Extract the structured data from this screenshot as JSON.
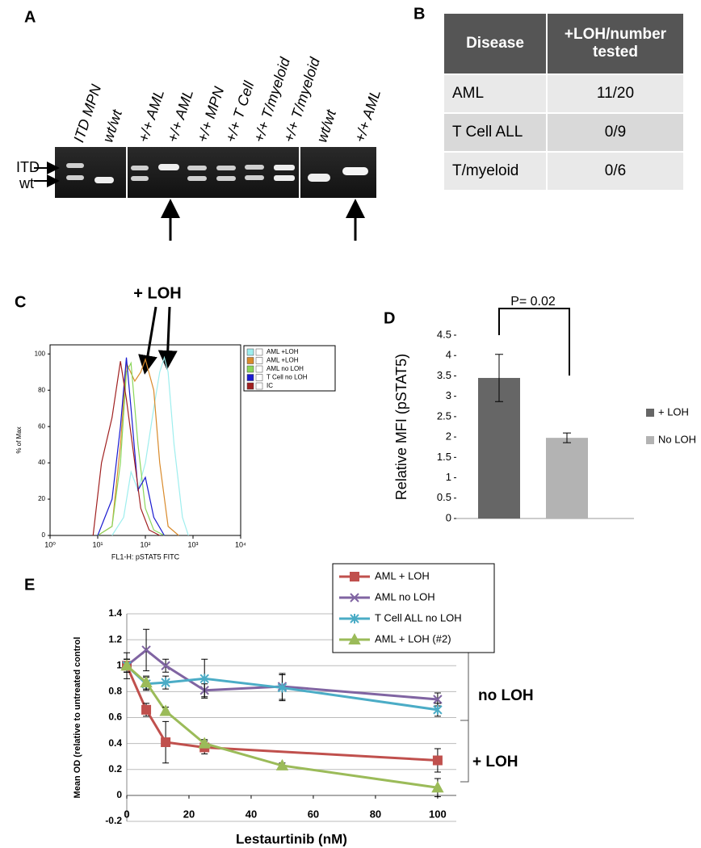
{
  "panel_labels": [
    "A",
    "B",
    "C",
    "D",
    "E"
  ],
  "gel": {
    "lanes": [
      "ITD MPN",
      "wt/wt",
      "+/+ AML",
      "+/+ AML",
      "+/+ MPN",
      "+/+ T Cell",
      "+/+ T/myeloid",
      "+/+ T/myeloid",
      "wt/wt",
      "+/+ AML"
    ],
    "band_labels": [
      "ITD",
      "wt"
    ]
  },
  "table": {
    "header": [
      "Disease",
      "+LOH/number tested"
    ],
    "rows": [
      [
        "AML",
        "11/20"
      ],
      [
        "T Cell ALL",
        "0/9"
      ],
      [
        "T/myeloid",
        "0/6"
      ]
    ]
  },
  "chart_data": [
    {
      "type": "line",
      "xscale": "log",
      "xlabel": "FL1-H: pSTAT5 FITC",
      "ylabel": "% of Max",
      "annotation": "+ LOH",
      "xlim": [
        1,
        10000
      ],
      "xticks": [
        {
          "value": 1,
          "label": "10⁰"
        },
        {
          "value": 10,
          "label": "10¹"
        },
        {
          "value": 100,
          "label": "10²"
        },
        {
          "value": 1000,
          "label": "10³"
        },
        {
          "value": 10000,
          "label": "10⁴"
        }
      ],
      "ylim": [
        0,
        105
      ],
      "yticks": [
        0,
        20,
        40,
        60,
        80,
        100
      ],
      "legend": "right",
      "series": [
        {
          "name": "AML  +LOH",
          "color": "#9eeeee",
          "x": [
            20,
            35,
            50,
            70,
            100,
            150,
            200,
            250,
            300,
            400,
            600,
            800
          ],
          "values": [
            0,
            10,
            35,
            25,
            40,
            70,
            90,
            98,
            90,
            50,
            10,
            0
          ]
        },
        {
          "name": "AML +LOH",
          "color": "#d98a2b",
          "x": [
            10,
            20,
            30,
            40,
            60,
            80,
            100,
            150,
            200,
            300,
            500
          ],
          "values": [
            0,
            5,
            50,
            95,
            85,
            90,
            97,
            80,
            40,
            5,
            0
          ]
        },
        {
          "name": "AML no LOH",
          "color": "#8ad65a",
          "x": [
            10,
            20,
            30,
            40,
            50,
            70,
            100,
            150,
            250
          ],
          "values": [
            0,
            5,
            40,
            90,
            95,
            50,
            15,
            3,
            0
          ]
        },
        {
          "name": "T Cell no LOH",
          "color": "#1a1ad0",
          "x": [
            10,
            20,
            30,
            40,
            50,
            70,
            100,
            150,
            250
          ],
          "values": [
            0,
            20,
            60,
            98,
            70,
            25,
            32,
            10,
            0
          ]
        },
        {
          "name": "IC",
          "color": "#a02020",
          "x": [
            8,
            12,
            20,
            30,
            40,
            60,
            80,
            120,
            200
          ],
          "values": [
            0,
            40,
            65,
            96,
            75,
            40,
            15,
            3,
            0
          ]
        }
      ]
    },
    {
      "type": "bar",
      "ylabel": "Relative MFI (pSTAT5)",
      "annotation": "P= 0.02",
      "legend": "right",
      "categories": [
        "+ LOH",
        "No LOH"
      ],
      "values": [
        3.45,
        1.98
      ],
      "errors": [
        0.58,
        0.12
      ],
      "colors": [
        "#666666",
        "#b3b3b3"
      ],
      "ylim": [
        0,
        4.5
      ],
      "yticks": [
        0,
        0.5,
        1,
        1.5,
        2,
        2.5,
        3,
        3.5,
        4,
        4.5
      ]
    },
    {
      "type": "line",
      "xlabel": "Lestaurtinib (nM)",
      "ylabel": "Mean OD (relative to untreated control",
      "annotations": [
        "no LOH",
        "+ LOH"
      ],
      "xlim": [
        0,
        106
      ],
      "xticks": [
        0,
        20,
        40,
        60,
        80,
        100
      ],
      "ylim": [
        -0.2,
        1.4
      ],
      "yticks": [
        -0.2,
        0,
        0.2,
        0.4,
        0.6,
        0.8,
        1,
        1.2,
        1.4
      ],
      "grid": true,
      "legend": "upper right",
      "series": [
        {
          "name": "AML + LOH",
          "color": "#c0504d",
          "marker": "square",
          "x": [
            0,
            6.25,
            12.5,
            25,
            100
          ],
          "values": [
            1,
            0.66,
            0.41,
            0.37,
            0.27
          ],
          "errors": [
            0.1,
            0.05,
            0.16,
            0.05,
            0.09
          ]
        },
        {
          "name": "AML no LOH",
          "color": "#8064a2",
          "marker": "x",
          "x": [
            0,
            6.25,
            12.5,
            25,
            50,
            100
          ],
          "values": [
            1,
            1.12,
            1.0,
            0.81,
            0.84,
            0.74
          ],
          "errors": [
            0.05,
            0.16,
            0.05,
            0.05,
            0.1,
            0.05
          ]
        },
        {
          "name": "T Cell ALL no LOH",
          "color": "#4bacc6",
          "marker": "asterisk",
          "x": [
            0,
            6.25,
            12.5,
            25,
            50,
            100
          ],
          "values": [
            1,
            0.86,
            0.87,
            0.9,
            0.83,
            0.66
          ],
          "errors": [
            0.05,
            0.05,
            0.05,
            0.15,
            0.1,
            0.05
          ]
        },
        {
          "name": "AML + LOH (#2)",
          "color": "#9bbb59",
          "marker": "triangle",
          "x": [
            0,
            6.25,
            12.5,
            25,
            50,
            100
          ],
          "values": [
            1,
            0.87,
            0.65,
            0.4,
            0.23,
            0.06
          ],
          "errors": [
            0.05,
            0.05,
            0.03,
            0.03,
            0.02,
            0.07
          ]
        }
      ]
    }
  ]
}
